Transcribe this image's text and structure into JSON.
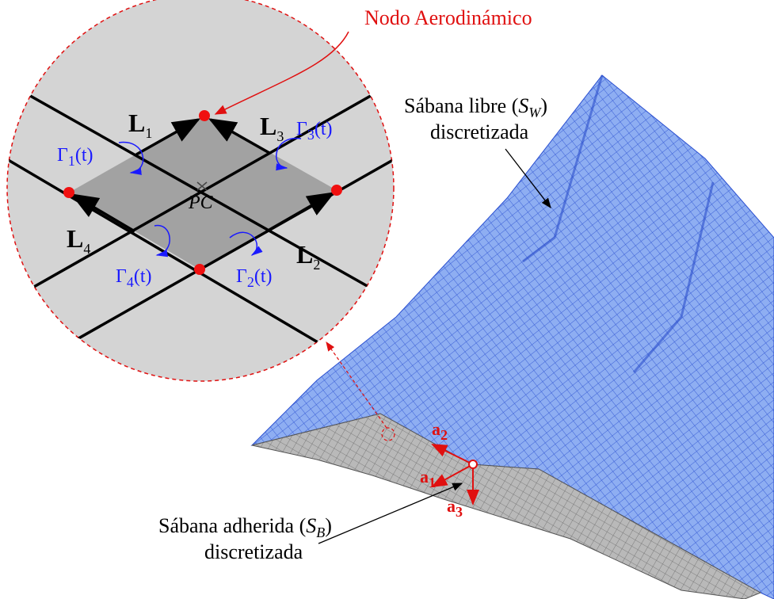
{
  "callout": "Nodo Aerodinámico",
  "segments": [
    {
      "letter": "L",
      "index": "1"
    },
    {
      "letter": "L",
      "index": "2"
    },
    {
      "letter": "L",
      "index": "3"
    },
    {
      "letter": "L",
      "index": "4"
    }
  ],
  "circulations": [
    {
      "symbol": "Γ",
      "index": "1",
      "arg": "(t)"
    },
    {
      "symbol": "Γ",
      "index": "2",
      "arg": "(t)"
    },
    {
      "symbol": "Γ",
      "index": "3",
      "arg": "(t)"
    },
    {
      "symbol": "Γ",
      "index": "4",
      "arg": "(t)"
    }
  ],
  "center": "PC",
  "free_wake": {
    "prefix": "Sábana libre (",
    "symbol": "S",
    "index": "W",
    "suffix": ")",
    "line2": "discretizada"
  },
  "bound_wake": {
    "prefix": "Sábana adherida (",
    "symbol": "S",
    "index": "B",
    "suffix": ")",
    "line2": "discretizada"
  },
  "axes": [
    {
      "letter": "a",
      "index": "1"
    },
    {
      "letter": "a",
      "index": "2"
    },
    {
      "letter": "a",
      "index": "3"
    }
  ]
}
